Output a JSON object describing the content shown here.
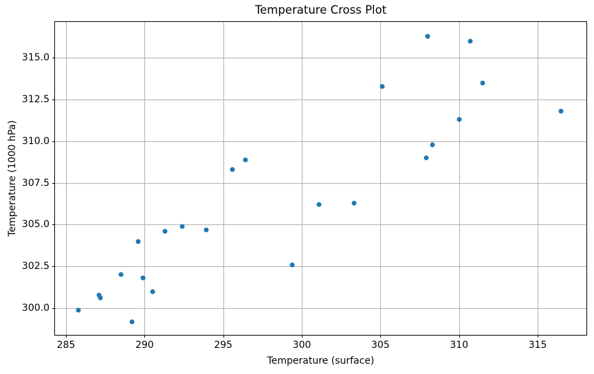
{
  "chart_data": {
    "type": "scatter",
    "title": "Temperature Cross Plot",
    "xlabel": "Temperature (surface)",
    "ylabel": "Temperature (1000 hPa)",
    "xlim": [
      284.3,
      318.1
    ],
    "ylim": [
      298.4,
      317.15
    ],
    "grid": true,
    "legend": "none",
    "grid_color": "#b0b0b0",
    "spine_color": "#000000",
    "marker_color": "#1f77b4",
    "marker_diameter_px": 7,
    "x_ticks": [
      {
        "value": 285,
        "label": "285"
      },
      {
        "value": 290,
        "label": "290"
      },
      {
        "value": 295,
        "label": "295"
      },
      {
        "value": 300,
        "label": "300"
      },
      {
        "value": 305,
        "label": "305"
      },
      {
        "value": 310,
        "label": "310"
      },
      {
        "value": 315,
        "label": "315"
      }
    ],
    "y_ticks": [
      {
        "value": 300.0,
        "label": "300.0"
      },
      {
        "value": 302.5,
        "label": "302.5"
      },
      {
        "value": 305.0,
        "label": "305.0"
      },
      {
        "value": 307.5,
        "label": "307.5"
      },
      {
        "value": 310.0,
        "label": "310.0"
      },
      {
        "value": 312.5,
        "label": "312.5"
      },
      {
        "value": 315.0,
        "label": "315.0"
      }
    ],
    "points": [
      [
        285.8,
        299.9
      ],
      [
        287.1,
        300.8
      ],
      [
        287.2,
        300.6
      ],
      [
        288.5,
        302.0
      ],
      [
        289.2,
        299.2
      ],
      [
        289.6,
        304.0
      ],
      [
        289.9,
        301.8
      ],
      [
        290.5,
        301.0
      ],
      [
        291.3,
        304.6
      ],
      [
        292.4,
        304.9
      ],
      [
        293.9,
        304.7
      ],
      [
        295.6,
        308.3
      ],
      [
        296.4,
        308.9
      ],
      [
        299.4,
        302.6
      ],
      [
        301.1,
        306.2
      ],
      [
        303.3,
        306.3
      ],
      [
        305.1,
        313.3
      ],
      [
        307.9,
        309.0
      ],
      [
        308.0,
        316.3
      ],
      [
        308.3,
        309.8
      ],
      [
        310.0,
        311.3
      ],
      [
        310.7,
        316.0
      ],
      [
        311.5,
        313.5
      ],
      [
        316.5,
        311.8
      ]
    ]
  }
}
